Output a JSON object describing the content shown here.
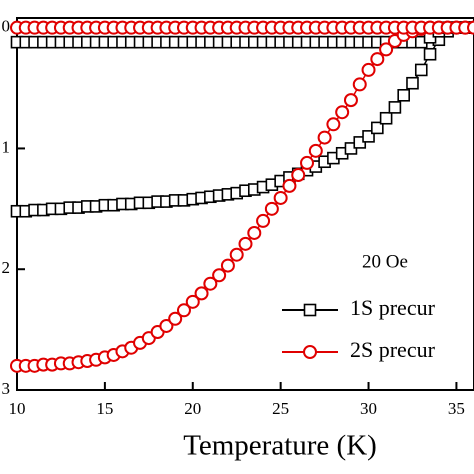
{
  "chart_data": {
    "type": "scatter-line",
    "x_label": "Temperature (K)",
    "annotation": "20 Oe",
    "x": [
      10,
      10.5,
      11,
      11.5,
      12,
      12.5,
      13,
      13.5,
      14,
      14.5,
      15,
      15.5,
      16,
      16.5,
      17,
      17.5,
      18,
      18.5,
      19,
      19.5,
      20,
      20.5,
      21,
      21.5,
      22,
      22.5,
      23,
      23.5,
      24,
      24.5,
      25,
      25.5,
      26,
      26.5,
      27,
      27.5,
      28,
      28.5,
      29,
      29.5,
      30,
      30.5,
      31,
      31.5,
      32,
      32.5,
      33,
      33.5,
      34,
      34.5,
      35,
      35.5,
      36
    ],
    "series": [
      {
        "name": "1S precur",
        "color": "#000000",
        "marker": "square",
        "values": [
          -1.52,
          -1.52,
          -1.51,
          -1.51,
          -1.5,
          -1.5,
          -1.49,
          -1.49,
          -1.48,
          -1.48,
          -1.47,
          -1.47,
          -1.46,
          -1.46,
          -1.45,
          -1.45,
          -1.44,
          -1.44,
          -1.43,
          -1.43,
          -1.42,
          -1.41,
          -1.4,
          -1.39,
          -1.38,
          -1.37,
          -1.35,
          -1.34,
          -1.32,
          -1.3,
          -1.27,
          -1.24,
          -1.21,
          -1.18,
          -1.15,
          -1.11,
          -1.08,
          -1.04,
          -1.0,
          -0.95,
          -0.9,
          -0.83,
          -0.75,
          -0.66,
          -0.56,
          -0.46,
          -0.35,
          -0.22,
          -0.1,
          -0.03,
          0,
          0,
          0
        ],
        "fc_values": [
          -0.12,
          -0.12,
          -0.12,
          -0.12,
          -0.12,
          -0.12,
          -0.12,
          -0.12,
          -0.12,
          -0.12,
          -0.12,
          -0.12,
          -0.12,
          -0.12,
          -0.12,
          -0.12,
          -0.12,
          -0.12,
          -0.12,
          -0.12,
          -0.12,
          -0.12,
          -0.12,
          -0.12,
          -0.12,
          -0.12,
          -0.12,
          -0.12,
          -0.12,
          -0.12,
          -0.12,
          -0.12,
          -0.12,
          -0.12,
          -0.12,
          -0.12,
          -0.12,
          -0.12,
          -0.12,
          -0.12,
          -0.12,
          -0.12,
          -0.12,
          -0.12,
          -0.12,
          -0.12,
          -0.12,
          -0.08,
          -0.03,
          0,
          0,
          0,
          0
        ]
      },
      {
        "name": "2S precur",
        "color": "#e00000",
        "marker": "circle",
        "values": [
          -2.8,
          -2.8,
          -2.8,
          -2.79,
          -2.79,
          -2.78,
          -2.78,
          -2.77,
          -2.76,
          -2.75,
          -2.73,
          -2.71,
          -2.68,
          -2.65,
          -2.61,
          -2.57,
          -2.52,
          -2.47,
          -2.41,
          -2.34,
          -2.27,
          -2.2,
          -2.12,
          -2.05,
          -1.97,
          -1.88,
          -1.79,
          -1.7,
          -1.6,
          -1.5,
          -1.41,
          -1.31,
          -1.22,
          -1.12,
          -1.02,
          -0.91,
          -0.8,
          -0.7,
          -0.6,
          -0.47,
          -0.35,
          -0.26,
          -0.18,
          -0.11,
          -0.06,
          -0.03,
          -0.01,
          0,
          0,
          0,
          0,
          0,
          0
        ],
        "fc_values": [
          0,
          0,
          0,
          0,
          0,
          0,
          0,
          0,
          0,
          0,
          0,
          0,
          0,
          0,
          0,
          0,
          0,
          0,
          0,
          0,
          0,
          0,
          0,
          0,
          0,
          0,
          0,
          0,
          0,
          0,
          0,
          0,
          0,
          0,
          0,
          0,
          0,
          0,
          0,
          0,
          0,
          0,
          0,
          0,
          0,
          0,
          0,
          0,
          0,
          0,
          0,
          0,
          0
        ]
      }
    ],
    "xlim": [
      10,
      36
    ],
    "xticks": [
      10,
      15,
      20,
      25,
      30,
      35
    ],
    "ylim": [
      -3,
      0.08
    ],
    "yticks": [
      {
        "value": 0,
        "label": "0"
      },
      {
        "value": -1,
        "label": "1"
      },
      {
        "value": -2,
        "label": "2"
      },
      {
        "value": -3,
        "label": "3"
      }
    ]
  }
}
